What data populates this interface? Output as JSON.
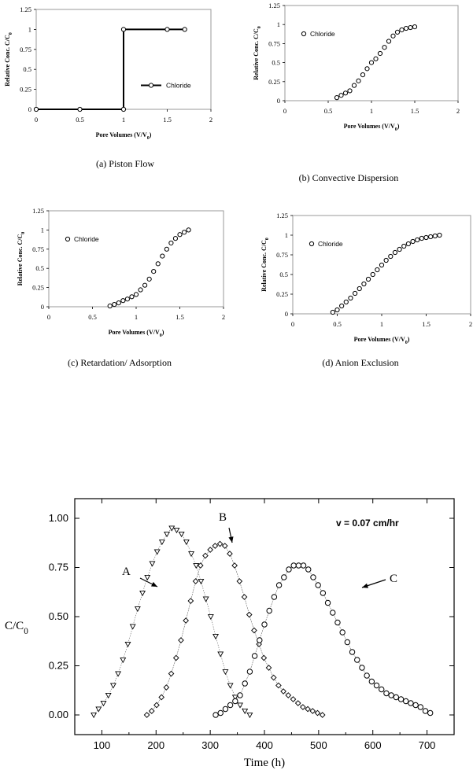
{
  "chart_data": [
    {
      "type": "line",
      "caption": "(a) Piston Flow",
      "xlabel": "Pore Volumes (V/V",
      "xlabel_sub": "0",
      "ylabel": "Relative Conc. C/C",
      "ylabel_sub": "0",
      "xlim": [
        0,
        2
      ],
      "ylim": [
        0,
        1.25
      ],
      "xticks": [
        "0",
        "0.5",
        "1",
        "1.5",
        "2"
      ],
      "yticks": [
        "0",
        "0.25",
        "0.5",
        "0.75",
        "1",
        "1.25"
      ],
      "grid": false,
      "legend": "right",
      "series": [
        {
          "name": "Chloride",
          "x": [
            0,
            0.5,
            1,
            1,
            1.5,
            1.7
          ],
          "y": [
            0,
            0,
            0,
            1,
            1,
            1
          ],
          "marker_x": [
            0,
            0.5,
            1,
            1,
            1.5,
            1.7
          ],
          "marker_y": [
            0,
            0,
            0,
            1,
            1,
            1
          ]
        }
      ]
    },
    {
      "type": "scatter",
      "caption": "(b) Convective Dispersion",
      "xlabel": "Pore Volumes (V/V",
      "xlabel_sub": "0",
      "ylabel": "Relative Conc. C/C",
      "ylabel_sub": "0",
      "xlim": [
        0,
        2
      ],
      "ylim": [
        0,
        1.25
      ],
      "xticks": [
        "0",
        "0.5",
        "1",
        "1.5",
        "2"
      ],
      "yticks": [
        "0",
        "0.25",
        "0.5",
        "0.75",
        "1",
        "1.25"
      ],
      "grid": false,
      "legend": "top-left",
      "series": [
        {
          "name": "Chloride",
          "x": [
            0.6,
            0.65,
            0.7,
            0.75,
            0.8,
            0.85,
            0.9,
            0.95,
            1.0,
            1.05,
            1.1,
            1.15,
            1.2,
            1.25,
            1.3,
            1.35,
            1.4,
            1.45,
            1.5
          ],
          "y": [
            0.04,
            0.07,
            0.1,
            0.13,
            0.2,
            0.26,
            0.34,
            0.42,
            0.5,
            0.55,
            0.62,
            0.7,
            0.78,
            0.85,
            0.9,
            0.93,
            0.95,
            0.96,
            0.97
          ]
        }
      ]
    },
    {
      "type": "scatter",
      "caption": "(c) Retardation/ Adsorption",
      "xlabel": "Pore Volumes (V/V",
      "xlabel_sub": "0",
      "ylabel": "Relative Conc. C/C",
      "ylabel_sub": "0",
      "xlim": [
        0,
        2
      ],
      "ylim": [
        0,
        1.25
      ],
      "xticks": [
        "0",
        "0.5",
        "1",
        "1.5",
        "2"
      ],
      "yticks": [
        "0",
        "0.25",
        "0.5",
        "0.75",
        "1",
        "1.25"
      ],
      "grid": false,
      "legend": "top-left",
      "series": [
        {
          "name": "Chloride",
          "x": [
            0.7,
            0.75,
            0.8,
            0.85,
            0.9,
            0.95,
            1.0,
            1.05,
            1.1,
            1.15,
            1.2,
            1.25,
            1.3,
            1.35,
            1.4,
            1.45,
            1.5,
            1.55,
            1.6
          ],
          "y": [
            0.01,
            0.03,
            0.05,
            0.08,
            0.1,
            0.13,
            0.16,
            0.22,
            0.28,
            0.36,
            0.46,
            0.56,
            0.66,
            0.75,
            0.83,
            0.89,
            0.94,
            0.97,
            1.0
          ]
        }
      ]
    },
    {
      "type": "scatter",
      "caption": "(d) Anion Exclusion",
      "xlabel": "Pore Volumes (V/V",
      "xlabel_sub": "0",
      "ylabel": "Relative Conc. C/C",
      "ylabel_sub": "0",
      "xlim": [
        0,
        2
      ],
      "ylim": [
        0,
        1.25
      ],
      "xticks": [
        "0",
        "0.5",
        "1",
        "1.5",
        "2"
      ],
      "yticks": [
        "0",
        "0.25",
        "0.5",
        "0.75",
        "1",
        "1.25"
      ],
      "grid": false,
      "legend": "top-left",
      "series": [
        {
          "name": "Chloride",
          "x": [
            0.45,
            0.5,
            0.55,
            0.6,
            0.65,
            0.7,
            0.75,
            0.8,
            0.85,
            0.9,
            0.95,
            1.0,
            1.05,
            1.1,
            1.15,
            1.2,
            1.25,
            1.3,
            1.35,
            1.4,
            1.45,
            1.5,
            1.55,
            1.6,
            1.65
          ],
          "y": [
            0.02,
            0.05,
            0.1,
            0.15,
            0.2,
            0.26,
            0.32,
            0.38,
            0.44,
            0.5,
            0.56,
            0.62,
            0.68,
            0.73,
            0.78,
            0.82,
            0.86,
            0.89,
            0.92,
            0.94,
            0.96,
            0.97,
            0.98,
            0.99,
            1.0
          ]
        }
      ]
    },
    {
      "type": "line",
      "xlabel": "Time (h)",
      "ylabel": "C/C",
      "ylabel_sub": "0",
      "xlim": [
        50,
        750
      ],
      "ylim": [
        -0.1,
        1.1
      ],
      "xticks": [
        "100",
        "200",
        "300",
        "400",
        "500",
        "600",
        "700"
      ],
      "yticks": [
        "0.00",
        "0.25",
        "0.50",
        "0.75",
        "1.00"
      ],
      "grid": false,
      "annotation": "v = 0.07 cm/hr",
      "series": [
        {
          "name": "A",
          "marker": "triangle-down",
          "x": [
            85,
            94,
            103,
            112,
            121,
            130,
            139,
            148,
            157,
            166,
            175,
            184,
            193,
            202,
            211,
            220,
            229,
            238,
            247,
            256,
            265,
            274,
            283,
            292,
            301,
            310,
            319,
            328,
            337,
            346,
            355,
            364,
            373
          ],
          "y": [
            0.0,
            0.03,
            0.06,
            0.1,
            0.15,
            0.21,
            0.28,
            0.36,
            0.45,
            0.54,
            0.62,
            0.7,
            0.77,
            0.83,
            0.88,
            0.92,
            0.95,
            0.94,
            0.92,
            0.88,
            0.82,
            0.76,
            0.68,
            0.59,
            0.5,
            0.4,
            0.31,
            0.22,
            0.15,
            0.09,
            0.05,
            0.02,
            0.0
          ]
        },
        {
          "name": "B",
          "marker": "diamond",
          "x": [
            183,
            192,
            201,
            210,
            219,
            228,
            237,
            246,
            255,
            264,
            273,
            282,
            291,
            300,
            309,
            318,
            327,
            336,
            345,
            354,
            363,
            372,
            381,
            390,
            399,
            408,
            417,
            426,
            435,
            444,
            453,
            462,
            471,
            480,
            489,
            498,
            507
          ],
          "y": [
            0.0,
            0.02,
            0.05,
            0.09,
            0.14,
            0.21,
            0.29,
            0.38,
            0.48,
            0.58,
            0.68,
            0.76,
            0.81,
            0.84,
            0.86,
            0.87,
            0.86,
            0.82,
            0.76,
            0.68,
            0.6,
            0.51,
            0.43,
            0.36,
            0.29,
            0.24,
            0.19,
            0.15,
            0.12,
            0.1,
            0.08,
            0.06,
            0.04,
            0.03,
            0.02,
            0.01,
            0.0
          ]
        },
        {
          "name": "C",
          "marker": "circle",
          "x": [
            310,
            319,
            328,
            337,
            346,
            355,
            364,
            373,
            382,
            391,
            400,
            409,
            418,
            427,
            436,
            445,
            454,
            463,
            472,
            481,
            490,
            499,
            508,
            517,
            526,
            535,
            544,
            553,
            562,
            571,
            580,
            589,
            598,
            607,
            616,
            625,
            634,
            643,
            652,
            661,
            670,
            679,
            688,
            697,
            706
          ],
          "y": [
            0.0,
            0.01,
            0.03,
            0.05,
            0.07,
            0.1,
            0.16,
            0.22,
            0.3,
            0.38,
            0.46,
            0.53,
            0.6,
            0.66,
            0.7,
            0.74,
            0.76,
            0.76,
            0.76,
            0.74,
            0.7,
            0.66,
            0.62,
            0.57,
            0.52,
            0.47,
            0.42,
            0.37,
            0.32,
            0.28,
            0.24,
            0.2,
            0.17,
            0.15,
            0.13,
            0.11,
            0.1,
            0.09,
            0.08,
            0.07,
            0.06,
            0.05,
            0.04,
            0.02,
            0.01
          ]
        }
      ]
    }
  ]
}
